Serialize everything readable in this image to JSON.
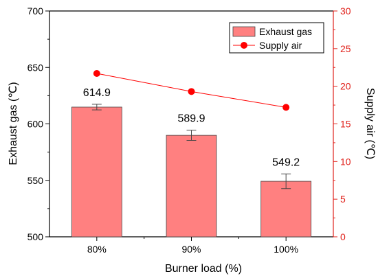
{
  "chart_data": {
    "type": "bar",
    "xlabel": "Burner load (%)",
    "ylabel_left": "Exhaust gas (℃)",
    "ylabel_right": "Supply air (℃)",
    "ylim_left": [
      500,
      700
    ],
    "yticks_left": [
      500,
      550,
      600,
      650,
      700
    ],
    "ylim_right": [
      0,
      30
    ],
    "yticks_right": [
      0,
      5,
      10,
      15,
      20,
      25,
      30
    ],
    "categories": [
      "80%",
      "90%",
      "100%"
    ],
    "series": [
      {
        "name": "Exhaust gas",
        "type": "bar",
        "axis": "left",
        "values": [
          614.9,
          589.9,
          549.2
        ],
        "value_labels": [
          "614.9",
          "589.9",
          "549.2"
        ],
        "error": [
          2.5,
          4.5,
          6.5
        ],
        "color": "#ff8080",
        "edge_color": "#444444"
      },
      {
        "name": "Supply air",
        "type": "line",
        "axis": "right",
        "values": [
          21.7,
          19.3,
          17.2
        ],
        "color": "#ff0000"
      }
    ],
    "legend_position": "top-right",
    "grid": false,
    "right_axis_color": "#e0201a"
  }
}
